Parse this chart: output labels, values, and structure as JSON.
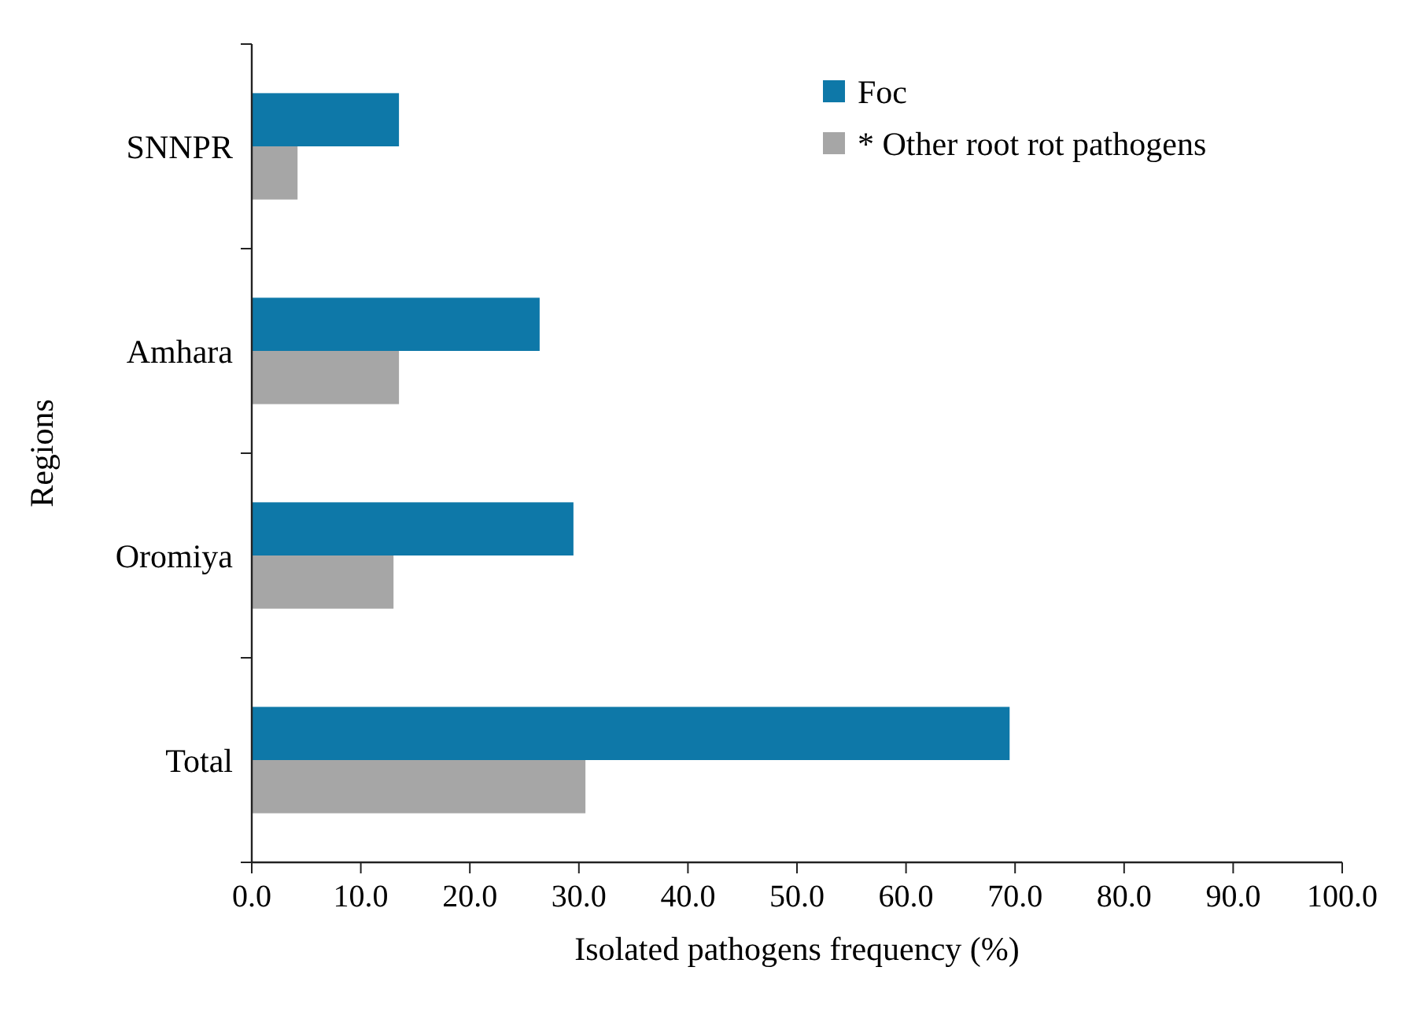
{
  "chart_data": {
    "type": "bar",
    "orientation": "horizontal",
    "xlabel": "Isolated pathogens frequency (%)",
    "ylabel": "Regions",
    "categories": [
      "SNNPR",
      "Amhara",
      "Oromiya",
      "Total"
    ],
    "series": [
      {
        "name": "Foc",
        "color": "#0e78a8",
        "values": [
          13.5,
          26.4,
          29.5,
          69.5
        ]
      },
      {
        "name": "* Other root rot pathogens",
        "color": "#a6a6a6",
        "values": [
          4.2,
          13.5,
          13.0,
          30.6
        ]
      }
    ],
    "xlim": [
      0,
      100
    ],
    "xticks": [
      {
        "value": 0,
        "label": "0.0"
      },
      {
        "value": 10,
        "label": "10.0"
      },
      {
        "value": 20,
        "label": "20.0"
      },
      {
        "value": 30,
        "label": "30.0"
      },
      {
        "value": 40,
        "label": "40.0"
      },
      {
        "value": 50,
        "label": "50.0"
      },
      {
        "value": 60,
        "label": "60.0"
      },
      {
        "value": 70,
        "label": "70.0"
      },
      {
        "value": 80,
        "label": "80.0"
      },
      {
        "value": 90,
        "label": "90.0"
      },
      {
        "value": 100,
        "label": "100.0"
      }
    ],
    "legend": "top right",
    "grid": false
  }
}
